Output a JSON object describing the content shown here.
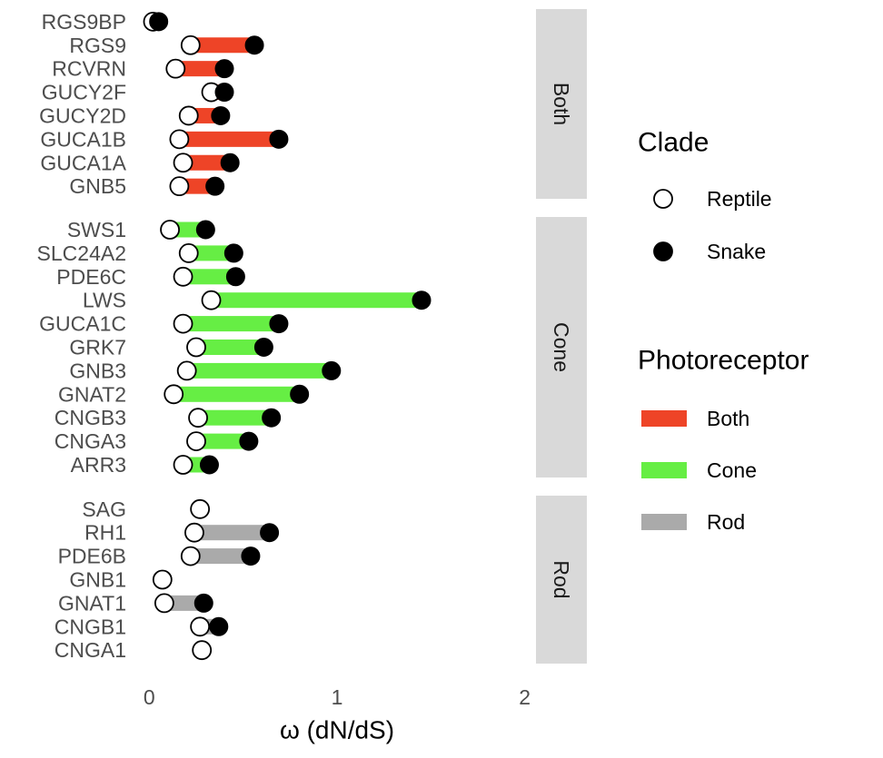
{
  "chart_data": {
    "type": "dumbbell",
    "xlabel": "ω (dN/dS)",
    "xlim": [
      -0.05,
      2.05
    ],
    "xticks": [
      0,
      1,
      2
    ],
    "xtick_labels": [
      "0",
      "1",
      "2"
    ],
    "grid": false,
    "legend_placement": "right",
    "colors": {
      "Both": "#ee4427",
      "Cone": "#66ee44",
      "Rod": "#aaaaaa"
    },
    "legends": {
      "clade": {
        "title": "Clade",
        "items": [
          "Reptile",
          "Snake"
        ]
      },
      "photoreceptor": {
        "title": "Photoreceptor",
        "items": [
          "Both",
          "Cone",
          "Rod"
        ]
      }
    },
    "panels": [
      {
        "name": "Both",
        "genes": [
          {
            "gene": "RGS9BP",
            "reptile": 0.02,
            "snake": 0.05
          },
          {
            "gene": "RGS9",
            "reptile": 0.22,
            "snake": 0.56
          },
          {
            "gene": "RCVRN",
            "reptile": 0.14,
            "snake": 0.4
          },
          {
            "gene": "GUCY2F",
            "reptile": 0.33,
            "snake": 0.4
          },
          {
            "gene": "GUCY2D",
            "reptile": 0.21,
            "snake": 0.38
          },
          {
            "gene": "GUCA1B",
            "reptile": 0.16,
            "snake": 0.69
          },
          {
            "gene": "GUCA1A",
            "reptile": 0.18,
            "snake": 0.43
          },
          {
            "gene": "GNB5",
            "reptile": 0.16,
            "snake": 0.35
          }
        ]
      },
      {
        "name": "Cone",
        "genes": [
          {
            "gene": "SWS1",
            "reptile": 0.11,
            "snake": 0.3
          },
          {
            "gene": "SLC24A2",
            "reptile": 0.21,
            "snake": 0.45
          },
          {
            "gene": "PDE6C",
            "reptile": 0.18,
            "snake": 0.46
          },
          {
            "gene": "LWS",
            "reptile": 0.33,
            "snake": 1.45
          },
          {
            "gene": "GUCA1C",
            "reptile": 0.18,
            "snake": 0.69
          },
          {
            "gene": "GRK7",
            "reptile": 0.25,
            "snake": 0.61
          },
          {
            "gene": "GNB3",
            "reptile": 0.2,
            "snake": 0.97
          },
          {
            "gene": "GNAT2",
            "reptile": 0.13,
            "snake": 0.8
          },
          {
            "gene": "CNGB3",
            "reptile": 0.26,
            "snake": 0.65
          },
          {
            "gene": "CNGA3",
            "reptile": 0.25,
            "snake": 0.53
          },
          {
            "gene": "ARR3",
            "reptile": 0.18,
            "snake": 0.32
          }
        ]
      },
      {
        "name": "Rod",
        "genes": [
          {
            "gene": "SAG",
            "reptile": 0.27,
            "snake": null
          },
          {
            "gene": "RH1",
            "reptile": 0.24,
            "snake": 0.64
          },
          {
            "gene": "PDE6B",
            "reptile": 0.22,
            "snake": 0.54
          },
          {
            "gene": "GNB1",
            "reptile": 0.07,
            "snake": null
          },
          {
            "gene": "GNAT1",
            "reptile": 0.08,
            "snake": 0.29
          },
          {
            "gene": "CNGB1",
            "reptile": 0.27,
            "snake": 0.37
          },
          {
            "gene": "CNGA1",
            "reptile": 0.28,
            "snake": null
          }
        ]
      }
    ]
  }
}
